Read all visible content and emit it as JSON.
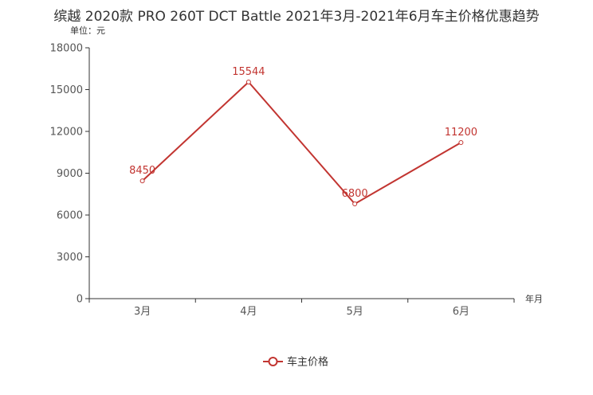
{
  "chart_data": {
    "type": "line",
    "title": "缤越 2020款 PRO 260T DCT Battle 2021年3月-2021年6月车主价格优惠趋势",
    "ylabel": "单位：元",
    "xlabel": "年月",
    "categories": [
      "3月",
      "4月",
      "5月",
      "6月"
    ],
    "series": [
      {
        "name": "车主价格",
        "values": [
          8450,
          15544,
          6800,
          11200
        ]
      }
    ],
    "ylim": [
      0,
      18000
    ],
    "yticks": [
      0,
      3000,
      6000,
      9000,
      12000,
      15000,
      18000
    ],
    "grid": false,
    "legend": "bottom-center",
    "color": "#c23531"
  }
}
